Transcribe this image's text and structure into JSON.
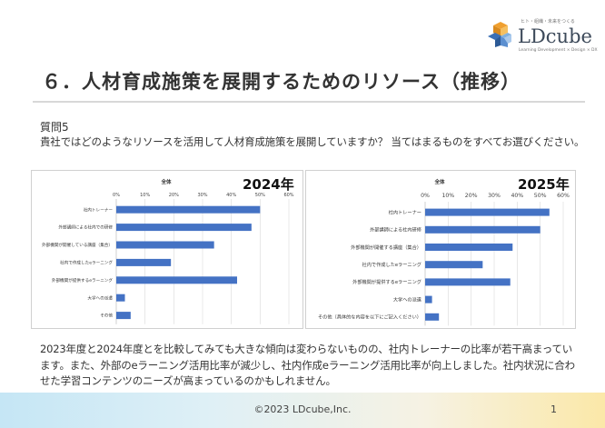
{
  "logo": {
    "name": "LDcube",
    "tagline": "ヒト・組織・未来をつくる",
    "subtitle": "Learning Development × Design × DX"
  },
  "title": "６．人材育成施策を展開するためのリソース（推移）",
  "question": {
    "number": "質問5",
    "text": "貴社ではどのようなリソースを活用して人材育成施策を展開していますか？ 当てはまるものをすべてお選びください。"
  },
  "chart_data": [
    {
      "type": "bar",
      "orientation": "horizontal",
      "year_label": "2024年",
      "title": "全体",
      "categories": [
        "社内トレーナー",
        "外部講師による社内での研修",
        "外部機関が開催している講座（集合）",
        "社内で作成したeラーニング",
        "外部機関が提供するeラーニング",
        "大学への派遣",
        "その他"
      ],
      "values": [
        50,
        47,
        34,
        19,
        42,
        3,
        5
      ],
      "xlim": [
        0,
        60
      ],
      "ticks": [
        "0%",
        "10%",
        "20%",
        "30%",
        "40%",
        "50%",
        "60%"
      ],
      "grid": true,
      "color": "#4472c4"
    },
    {
      "type": "bar",
      "orientation": "horizontal",
      "year_label": "2025年",
      "title": "全体",
      "categories": [
        "社内トレーナー",
        "外部講師による社内研修",
        "外部機関が開催する講座（集合）",
        "社内で作成したeラーニング",
        "外部機関が提供するeラーニング",
        "大学への派遣",
        "その他（具体的な内容を以下にご記入ください）"
      ],
      "values": [
        54,
        50,
        38,
        25,
        37,
        3,
        6
      ],
      "xlim": [
        0,
        60
      ],
      "ticks": [
        "0%",
        "10%",
        "20%",
        "30%",
        "40%",
        "50%",
        "60%"
      ],
      "grid": true,
      "color": "#4472c4"
    }
  ],
  "conclusion": "2023年度と2024年度とを比較してみても大きな傾向は変わらないものの、社内トレーナーの比率が若干高まっています。また、外部のeラーニング活用比率が減少し、社内作成eラーニング活用比率が向上しました。社内状況に合わせた学習コンテンツのニーズが高まっているのかもしれません。",
  "footer": {
    "copyright": "©2023 LDcube,Inc.",
    "page": "1"
  },
  "colors": {
    "bar": "#4472c4",
    "footer_left": "#c5e6f5",
    "footer_right": "#fbe8a8",
    "logo_cube_blue": "#3a6fb5",
    "logo_cube_orange": "#f0a030"
  }
}
